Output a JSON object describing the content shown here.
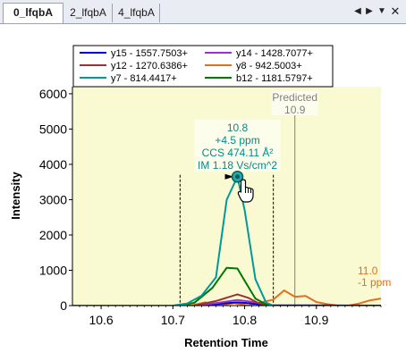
{
  "tabs": [
    {
      "label": "0_lfqbA",
      "active": true
    },
    {
      "label": "2_lfqbA",
      "active": false
    },
    {
      "label": "4_lfqbA",
      "active": false
    }
  ],
  "tab_controls": {
    "prev_icon": "triangle-left-icon",
    "next_icon": "triangle-right-icon",
    "menu_icon": "chevron-down-icon",
    "close_icon": "close-icon"
  },
  "chart_data": {
    "type": "line",
    "xlabel": "Retention Time",
    "ylabel": "Intensity",
    "xlim": [
      10.56,
      10.99
    ],
    "ylim": [
      0,
      6200
    ],
    "xticks": [
      10.6,
      10.7,
      10.8,
      10.9
    ],
    "xtick_labels": [
      "10.6",
      "10.7",
      "10.8",
      "10.9"
    ],
    "yticks": [
      0,
      1000,
      2000,
      3000,
      4000,
      5000,
      6000
    ],
    "ytick_labels": [
      "0",
      "1000",
      "2000",
      "3000",
      "4000",
      "5000",
      "6000"
    ],
    "legend_position": "top",
    "legend": [
      {
        "name": "y15 - 1557.7503+",
        "color": "#0000cc"
      },
      {
        "name": "y14 - 1428.7077+",
        "color": "#9933cc"
      },
      {
        "name": "y12 - 1270.6386+",
        "color": "#993333"
      },
      {
        "name": "y8 - 942.5003+",
        "color": "#e07020"
      },
      {
        "name": "y7 - 814.4417+",
        "color": "#009999"
      },
      {
        "name": "b12 - 1181.5797+",
        "color": "#007700"
      }
    ],
    "series": [
      {
        "name": "y7 - 814.4417+",
        "color": "#009999",
        "x": [
          10.56,
          10.7,
          10.72,
          10.74,
          10.76,
          10.775,
          10.79,
          10.8,
          10.815,
          10.83,
          10.84
        ],
        "y": [
          0,
          0,
          60,
          280,
          800,
          3000,
          3650,
          2700,
          750,
          80,
          0
        ]
      },
      {
        "name": "b12 - 1181.5797+",
        "color": "#007700",
        "x": [
          10.56,
          10.71,
          10.73,
          10.755,
          10.775,
          10.79,
          10.8,
          10.815,
          10.83,
          10.84
        ],
        "y": [
          0,
          0,
          80,
          500,
          1070,
          1050,
          700,
          200,
          30,
          0
        ]
      },
      {
        "name": "y12 - 1270.6386+",
        "color": "#993333",
        "x": [
          10.56,
          10.73,
          10.76,
          10.79,
          10.805,
          10.82,
          10.84
        ],
        "y": [
          0,
          0,
          130,
          320,
          220,
          60,
          0
        ]
      },
      {
        "name": "y14 - 1428.7077+",
        "color": "#9933cc",
        "x": [
          10.56,
          10.73,
          10.76,
          10.79,
          10.81,
          10.83,
          10.84
        ],
        "y": [
          0,
          0,
          70,
          160,
          110,
          30,
          0
        ]
      },
      {
        "name": "y15 - 1557.7503+",
        "color": "#0000cc",
        "x": [
          10.56,
          10.74,
          10.77,
          10.79,
          10.81,
          10.83,
          10.99
        ],
        "y": [
          0,
          0,
          60,
          90,
          60,
          10,
          0
        ]
      },
      {
        "name": "y8 - 942.5003+",
        "color": "#e07020",
        "x": [
          10.56,
          10.725,
          10.745,
          10.765,
          10.785,
          10.805,
          10.825,
          10.84,
          10.855,
          10.87,
          10.885,
          10.9,
          10.915,
          10.93,
          10.945,
          10.96,
          10.975,
          10.99
        ],
        "y": [
          0,
          0,
          90,
          0,
          70,
          0,
          100,
          170,
          430,
          250,
          270,
          100,
          40,
          0,
          0,
          60,
          150,
          200
        ]
      }
    ],
    "integration_boundaries": [
      10.71,
      10.84
    ],
    "predicted": {
      "x": 10.87,
      "label": "Predicted",
      "value": "10.9"
    },
    "peak_annotation": {
      "x": 10.79,
      "y": 3650,
      "lines": [
        "10.8",
        "+4.5 ppm",
        "CCS 474.11 Å²",
        "IM 1.18 Vs/cm^2"
      ],
      "color": "#008b8b"
    },
    "secondary_annotation": {
      "lines": [
        "11.0",
        "-1 ppm"
      ],
      "color": "#e07020"
    }
  },
  "colors": {
    "plot_background": "#fafad2",
    "predicted_line": "#808080"
  }
}
